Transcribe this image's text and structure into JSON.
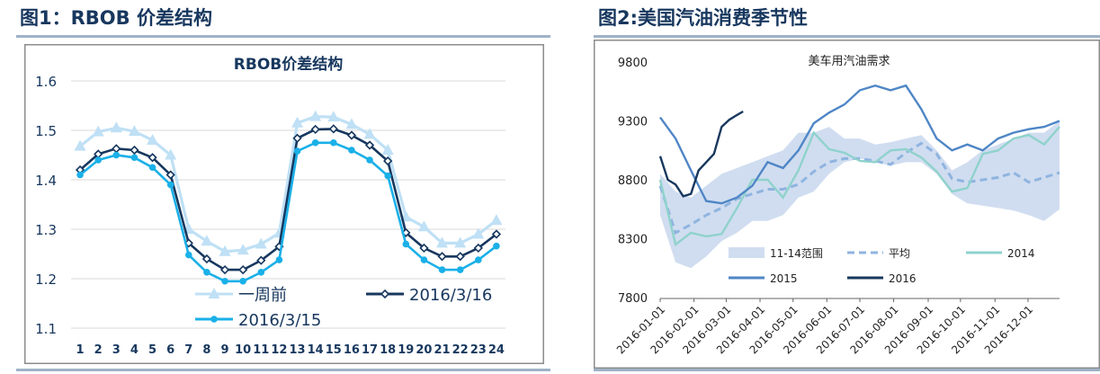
{
  "figure1": {
    "caption": "图1：RBOB 价差结构",
    "chart_data": {
      "type": "line",
      "title": "RBOB价差结构",
      "xlabel": "",
      "ylabel": "",
      "categories": [
        "1",
        "2",
        "3",
        "4",
        "5",
        "6",
        "7",
        "8",
        "9",
        "10",
        "11",
        "12",
        "13",
        "14",
        "15",
        "16",
        "17",
        "18",
        "19",
        "20",
        "21",
        "22",
        "23",
        "24"
      ],
      "ylim": [
        1.1,
        1.6
      ],
      "yticks": [
        "1.1",
        "1.2",
        "1.3",
        "1.4",
        "1.5",
        "1.6"
      ],
      "grid": true,
      "legend_placement": "bottom-left",
      "series": [
        {
          "name": "一周前",
          "color": "#bfe0f5",
          "marker": "triangle",
          "values": [
            1.468,
            1.497,
            1.505,
            1.498,
            1.48,
            1.45,
            1.3,
            1.276,
            1.255,
            1.258,
            1.27,
            1.292,
            1.515,
            1.528,
            1.527,
            1.512,
            1.492,
            1.46,
            1.325,
            1.305,
            1.272,
            1.272,
            1.29,
            1.318
          ]
        },
        {
          "name": "2016/3/16",
          "color": "#17375e",
          "marker": "diamond",
          "values": [
            1.42,
            1.452,
            1.463,
            1.46,
            1.445,
            1.41,
            1.272,
            1.24,
            1.218,
            1.218,
            1.237,
            1.265,
            1.484,
            1.502,
            1.503,
            1.49,
            1.47,
            1.438,
            1.293,
            1.262,
            1.245,
            1.245,
            1.262,
            1.29
          ]
        },
        {
          "name": "2016/3/15",
          "color": "#1ab0e8",
          "marker": "circle",
          "values": [
            1.41,
            1.44,
            1.45,
            1.445,
            1.425,
            1.39,
            1.248,
            1.213,
            1.195,
            1.195,
            1.213,
            1.238,
            1.458,
            1.475,
            1.475,
            1.46,
            1.44,
            1.408,
            1.27,
            1.238,
            1.218,
            1.218,
            1.238,
            1.266
          ]
        }
      ]
    }
  },
  "figure2": {
    "caption": "图2:美国汽油消费季节性",
    "chart_data": {
      "type": "line",
      "title": "美车用汽油需求",
      "xlabel": "",
      "ylabel": "",
      "ylim": [
        7800,
        9800
      ],
      "yticks": [
        "7800",
        "8300",
        "8800",
        "9300",
        "9800"
      ],
      "xlim": [
        0,
        52
      ],
      "xticks": [
        {
          "label": "2016-01-01",
          "week": 0
        },
        {
          "label": "2016-02-01",
          "week": 4.4
        },
        {
          "label": "2016-03-01",
          "week": 8.6
        },
        {
          "label": "2016-04-01",
          "week": 13.0
        },
        {
          "label": "2016-05-01",
          "week": 17.3
        },
        {
          "label": "2016-06-01",
          "week": 21.7
        },
        {
          "label": "2016-07-01",
          "week": 26.0
        },
        {
          "label": "2016-08-01",
          "week": 30.4
        },
        {
          "label": "2016-09-01",
          "week": 34.9
        },
        {
          "label": "2016-10-01",
          "week": 39.1
        },
        {
          "label": "2016-11-01",
          "week": 43.6
        },
        {
          "label": "2016-12-01",
          "week": 47.9
        }
      ],
      "grid": false,
      "legend_placement": "bottom",
      "range_band": {
        "name": "11-14范围",
        "color": "#d0ddf0",
        "x": [
          0,
          2,
          4,
          6,
          8,
          10,
          12,
          14,
          16,
          18,
          20,
          22,
          24,
          26,
          28,
          30,
          32,
          34,
          36,
          38,
          40,
          42,
          44,
          46,
          48,
          50,
          52
        ],
        "low": [
          8500,
          8100,
          8050,
          8150,
          8280,
          8350,
          8450,
          8450,
          8500,
          8650,
          8700,
          8850,
          8950,
          8980,
          8950,
          8920,
          8950,
          8950,
          8850,
          8680,
          8600,
          8580,
          8560,
          8540,
          8500,
          8450,
          8550
        ],
        "high": [
          8850,
          8700,
          8650,
          8750,
          8850,
          8900,
          8950,
          9000,
          9050,
          9200,
          9200,
          9250,
          9150,
          9150,
          9100,
          9120,
          9150,
          9180,
          9050,
          8880,
          8950,
          9050,
          9100,
          9150,
          9200,
          9200,
          9300
        ]
      },
      "series": [
        {
          "name": "平均",
          "color": "#8fb4e0",
          "dash": true,
          "x": [
            0,
            2,
            4,
            6,
            8,
            10,
            12,
            14,
            16,
            18,
            20,
            22,
            24,
            26,
            28,
            30,
            32,
            34,
            36,
            38,
            40,
            42,
            44,
            46,
            48,
            50,
            52
          ],
          "values": [
            8750,
            8350,
            8420,
            8500,
            8560,
            8640,
            8680,
            8720,
            8720,
            8760,
            8870,
            8950,
            8980,
            8980,
            8960,
            8930,
            9030,
            9110,
            9020,
            8810,
            8780,
            8800,
            8820,
            8860,
            8780,
            8820,
            8860
          ]
        },
        {
          "name": "2014",
          "color": "#8fd2cc",
          "dash": false,
          "x": [
            0,
            2,
            4,
            6,
            8,
            10,
            12,
            14,
            16,
            18,
            20,
            22,
            24,
            26,
            28,
            30,
            32,
            34,
            36,
            38,
            40,
            42,
            44,
            46,
            48,
            50,
            52
          ],
          "values": [
            8800,
            8250,
            8350,
            8320,
            8340,
            8560,
            8800,
            8800,
            8650,
            8880,
            9200,
            9060,
            9030,
            8960,
            8950,
            9050,
            9060,
            8990,
            8870,
            8700,
            8730,
            9020,
            9050,
            9150,
            9180,
            9100,
            9250
          ]
        },
        {
          "name": "2015",
          "color": "#4f86c6",
          "dash": false,
          "x": [
            0,
            2,
            4,
            6,
            8,
            10,
            12,
            14,
            16,
            18,
            20,
            22,
            24,
            26,
            28,
            30,
            32,
            34,
            36,
            38,
            40,
            42,
            44,
            46,
            48,
            50,
            52
          ],
          "values": [
            9330,
            9150,
            8880,
            8620,
            8600,
            8650,
            8750,
            8950,
            8900,
            9050,
            9280,
            9370,
            9440,
            9560,
            9600,
            9560,
            9600,
            9400,
            9150,
            9050,
            9100,
            9050,
            9150,
            9200,
            9230,
            9250,
            9300
          ]
        },
        {
          "name": "2016",
          "color": "#17375e",
          "dash": false,
          "x": [
            0,
            1,
            2,
            3,
            4,
            5,
            6,
            7,
            8,
            9,
            10,
            10.8
          ],
          "values": [
            9000,
            8800,
            8760,
            8660,
            8680,
            8880,
            8950,
            9020,
            9250,
            9310,
            9350,
            9380
          ]
        }
      ]
    }
  }
}
